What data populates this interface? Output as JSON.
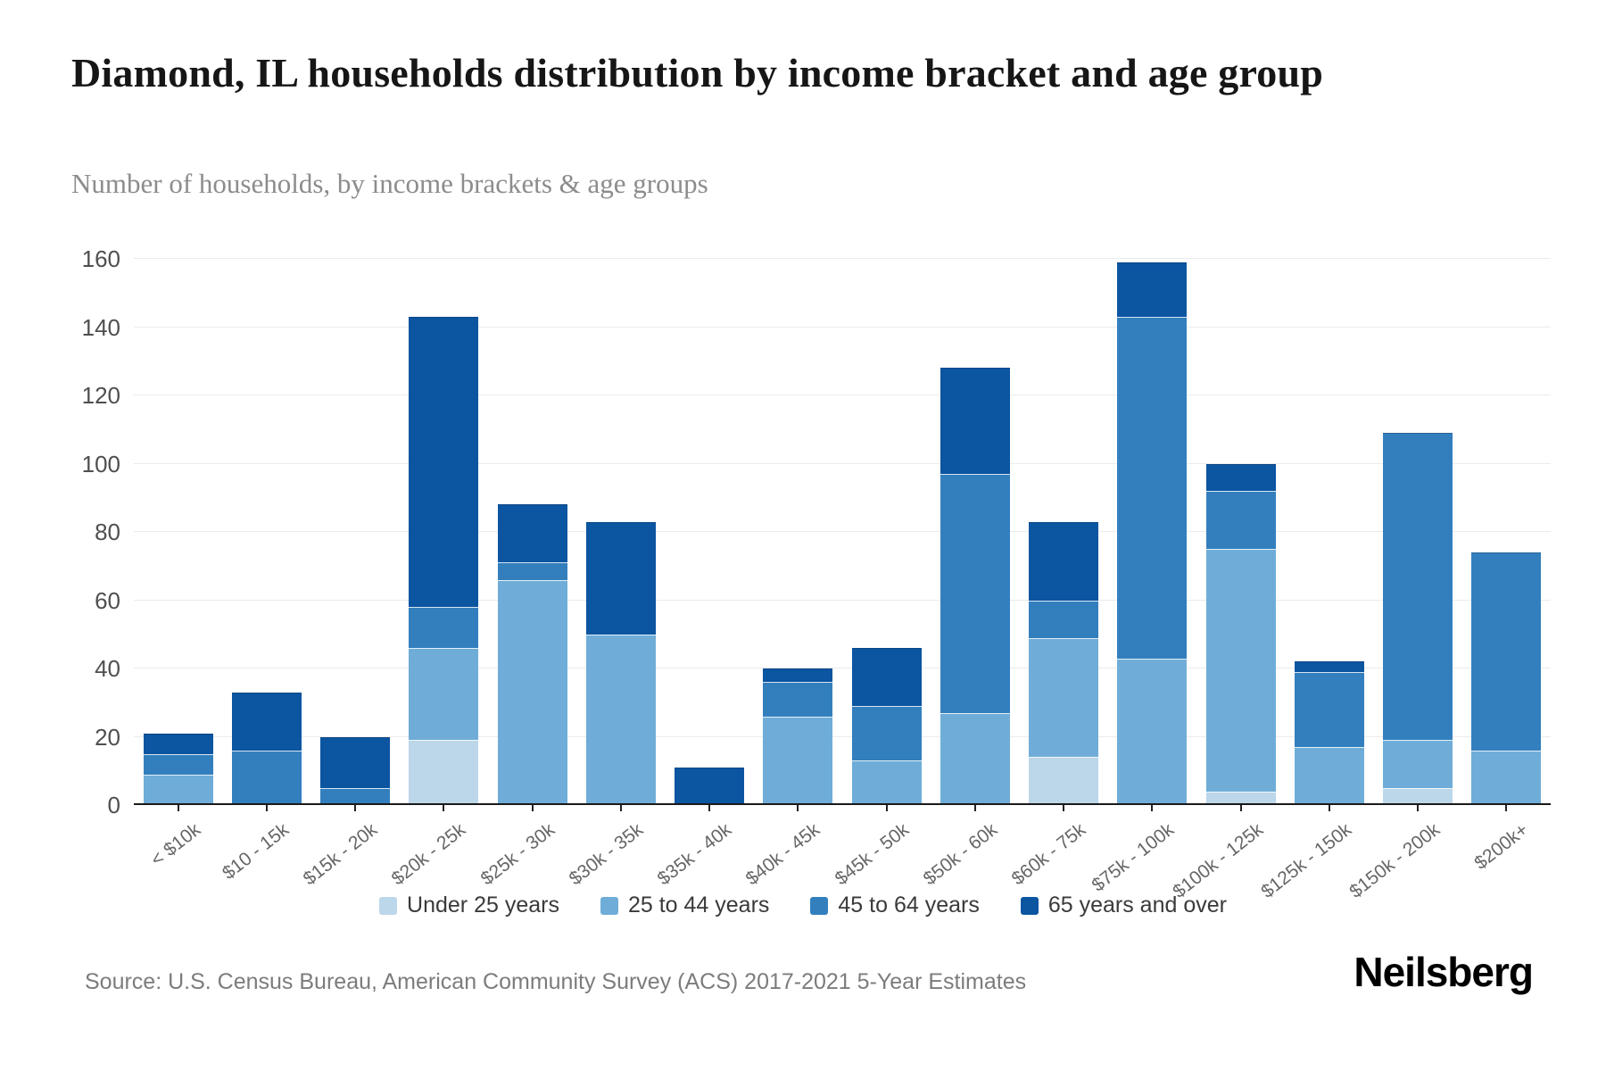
{
  "header": {
    "title": "Diamond, IL households distribution by income bracket and age group",
    "subtitle": "Number of households, by income brackets & age groups"
  },
  "chart_data": {
    "type": "bar",
    "variant": "stacked-vertical",
    "title": "Diamond, IL households distribution by income bracket and age group",
    "subtitle": "Number of households, by income brackets & age groups",
    "xlabel": "",
    "ylabel": "Number of households",
    "ylim": [
      0,
      160
    ],
    "yticks": [
      0,
      20,
      40,
      60,
      80,
      100,
      120,
      140,
      160
    ],
    "grid": true,
    "legend_position": "bottom",
    "categories": [
      "< $10k",
      "$10 - 15k",
      "$15k - 20k",
      "$20k - 25k",
      "$25k - 30k",
      "$30k - 35k",
      "$35k - 40k",
      "$40k - 45k",
      "$45k - 50k",
      "$50k - 60k",
      "$60k - 75k",
      "$75k - 100k",
      "$100k - 125k",
      "$125k - 150k",
      "$150k - 200k",
      "$200k+"
    ],
    "series": [
      {
        "name": "Under 25 years",
        "color": "#bcd6ea",
        "values": [
          0,
          0,
          0,
          19,
          0,
          0,
          0,
          0,
          0,
          0,
          14,
          0,
          4,
          0,
          5,
          0
        ]
      },
      {
        "name": "25 to 44 years",
        "color": "#6fadd8",
        "values": [
          9,
          0,
          0,
          27,
          66,
          50,
          0,
          26,
          13,
          27,
          35,
          43,
          71,
          17,
          14,
          16
        ]
      },
      {
        "name": "45 to 64 years",
        "color": "#337fbe",
        "values": [
          6,
          16,
          5,
          12,
          5,
          0,
          0,
          10,
          16,
          70,
          11,
          100,
          17,
          22,
          90,
          58
        ]
      },
      {
        "name": "65 years and over",
        "color": "#0b55a1",
        "values": [
          6,
          17,
          15,
          85,
          17,
          33,
          11,
          4,
          17,
          31,
          23,
          16,
          8,
          3,
          0,
          0
        ]
      }
    ],
    "bar_totals": [
      21,
      33,
      20,
      143,
      88,
      83,
      11,
      40,
      46,
      128,
      83,
      159,
      100,
      42,
      109,
      74
    ],
    "colors": {
      "gridline": "#ebebeb",
      "axis_line": "#1a1a1a",
      "background": "#ffffff"
    }
  },
  "footer": {
    "source": "Source: U.S. Census Bureau, American Community Survey (ACS) 2017-2021 5-Year Estimates",
    "logo": "Neilsberg"
  }
}
